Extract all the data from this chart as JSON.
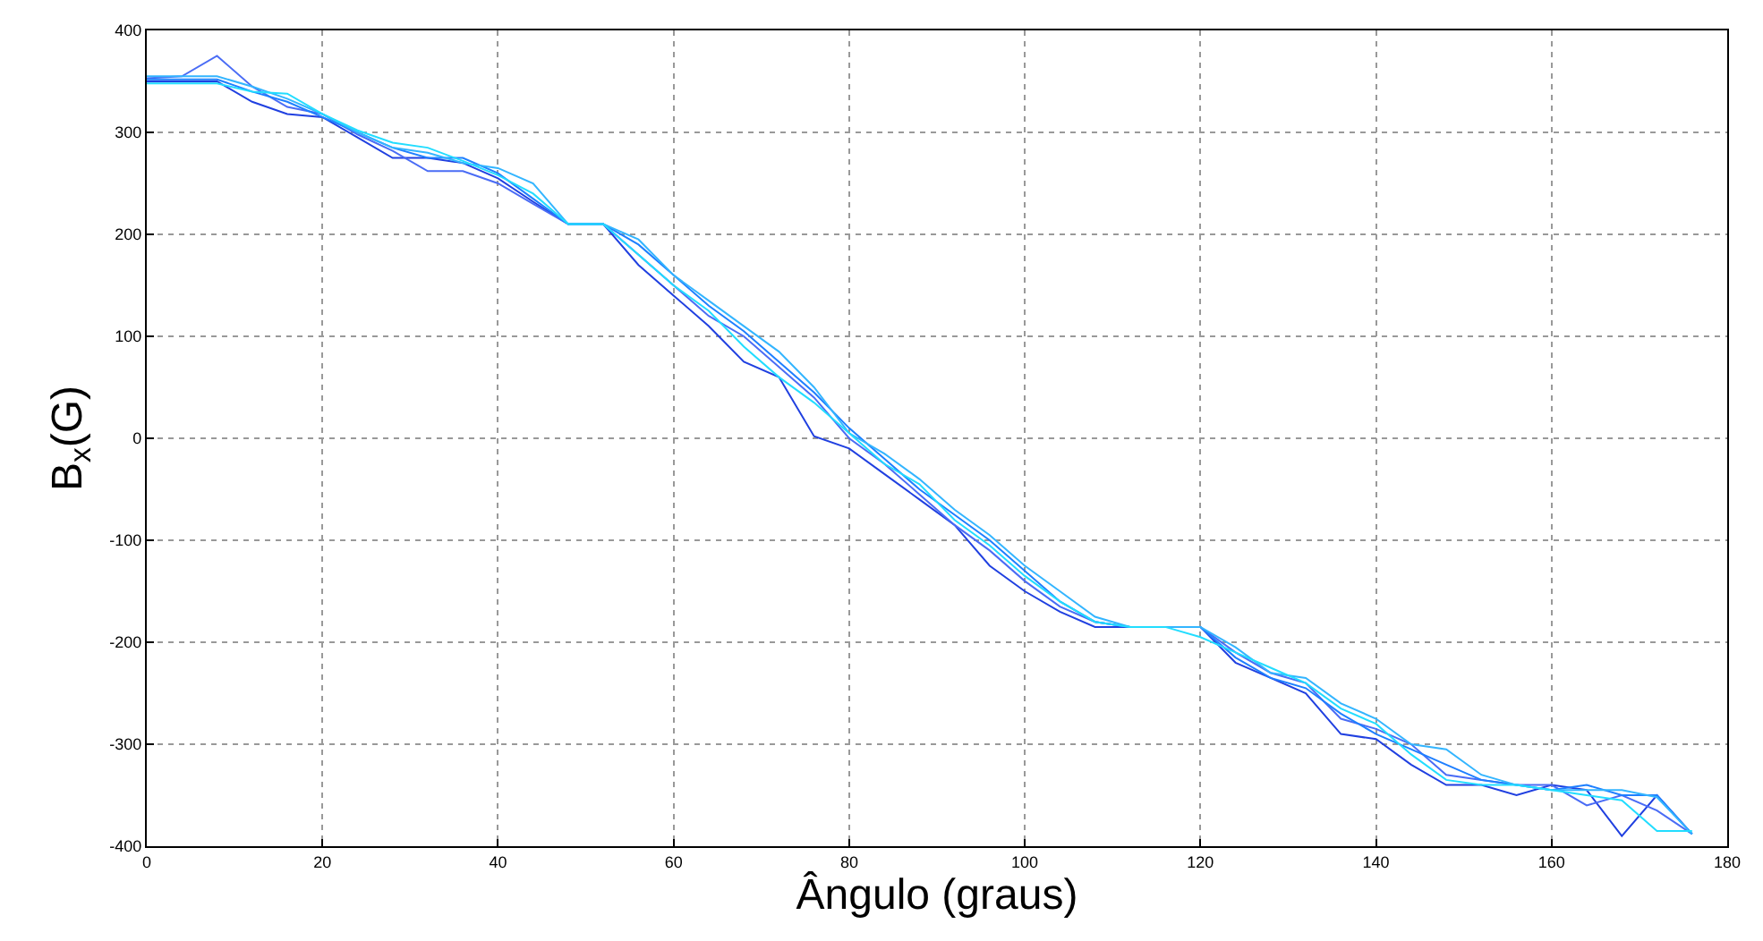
{
  "chart_data": {
    "type": "line",
    "xlabel": "Ângulo (graus)",
    "ylabel": "B$_{x}$(G)",
    "xlim": [
      0,
      180
    ],
    "xticks": [
      0,
      20,
      40,
      60,
      80,
      100,
      120,
      140,
      160,
      180
    ],
    "ylim": [
      -400,
      400
    ],
    "yticks": [
      -400,
      -300,
      -200,
      -100,
      0,
      100,
      200,
      300,
      400
    ],
    "grid": true,
    "marker": "none",
    "line_style": "solid",
    "x": [
      0,
      4,
      8,
      12,
      16,
      20,
      24,
      28,
      32,
      36,
      40,
      44,
      48,
      52,
      56,
      60,
      64,
      68,
      72,
      76,
      80,
      84,
      88,
      92,
      96,
      100,
      104,
      108,
      112,
      116,
      120,
      124,
      128,
      132,
      136,
      140,
      144,
      148,
      152,
      156,
      160,
      164,
      168,
      172,
      176
    ],
    "series": [
      {
        "color": "#2040e0",
        "values": [
          350,
          350,
          350,
          330,
          318,
          315,
          295,
          275,
          275,
          270,
          255,
          232,
          210,
          210,
          170,
          140,
          110,
          75,
          60,
          2,
          -10,
          -35,
          -60,
          -85,
          -125,
          -150,
          -170,
          -185,
          -185,
          -185,
          -185,
          -220,
          -235,
          -250,
          -290,
          -295,
          -320,
          -340,
          -340,
          -350,
          -340,
          -345,
          -390,
          -350,
          -388
        ]
      },
      {
        "color": "#4a6cf5",
        "values": [
          353,
          355,
          375,
          345,
          325,
          318,
          298,
          282,
          262,
          262,
          250,
          230,
          210,
          210,
          180,
          150,
          120,
          100,
          70,
          40,
          0,
          -25,
          -55,
          -85,
          -110,
          -140,
          -165,
          -180,
          -185,
          -185,
          -185,
          -210,
          -230,
          -240,
          -275,
          -285,
          -300,
          -330,
          -335,
          -340,
          -340,
          -360,
          -350,
          -365,
          -388
        ]
      },
      {
        "color": "#1e7fff",
        "values": [
          352,
          352,
          352,
          340,
          330,
          315,
          300,
          285,
          275,
          275,
          260,
          235,
          210,
          210,
          190,
          160,
          130,
          105,
          75,
          45,
          10,
          -20,
          -50,
          -75,
          -100,
          -130,
          -160,
          -180,
          -185,
          -185,
          -185,
          -215,
          -235,
          -245,
          -270,
          -290,
          -305,
          -320,
          -335,
          -340,
          -345,
          -340,
          -350,
          -350,
          -388
        ]
      },
      {
        "color": "#33b5ff",
        "values": [
          355,
          355,
          355,
          345,
          333,
          318,
          300,
          285,
          280,
          270,
          265,
          250,
          210,
          210,
          195,
          160,
          135,
          110,
          85,
          50,
          5,
          -15,
          -40,
          -70,
          -95,
          -125,
          -150,
          -175,
          -185,
          -185,
          -185,
          -205,
          -230,
          -235,
          -260,
          -275,
          -300,
          -305,
          -330,
          -340,
          -345,
          -345,
          -345,
          -352,
          -388
        ]
      },
      {
        "color": "#22ddff",
        "values": [
          348,
          348,
          348,
          340,
          338,
          318,
          302,
          290,
          285,
          272,
          258,
          240,
          210,
          210,
          180,
          150,
          125,
          90,
          60,
          35,
          5,
          -25,
          -45,
          -80,
          -105,
          -135,
          -160,
          -180,
          -185,
          -185,
          -195,
          -210,
          -225,
          -240,
          -265,
          -280,
          -310,
          -335,
          -340,
          -340,
          -345,
          -350,
          -355,
          -385,
          -385
        ]
      }
    ]
  }
}
